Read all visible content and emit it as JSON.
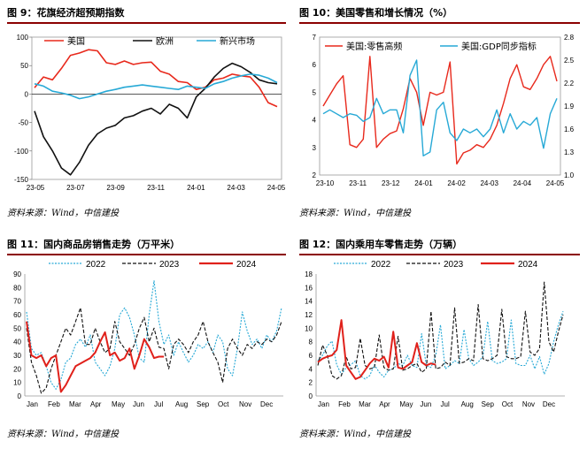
{
  "source_note": "资料来源：Wind，中信建投",
  "figures": [
    {
      "title": "图 9：花旗经济超预期指数"
    },
    {
      "title": "图 10：美国零售和增长情况（%）"
    },
    {
      "title": "图 11：国内商品房销售走势（万平米）"
    },
    {
      "title": "图 12：国内乘用车零售走势（万辆）"
    }
  ],
  "chart_data": [
    {
      "type": "line",
      "title": "",
      "x_ticks": [
        "23-05",
        "23-07",
        "23-09",
        "23-11",
        "24-01",
        "24-03",
        "24-05"
      ],
      "ylim": [
        -150,
        100
      ],
      "y_ticks": [
        -150,
        -100,
        -50,
        0,
        50,
        100
      ],
      "grid": false,
      "legend": "top",
      "n_points": 28,
      "series": [
        {
          "name": "美国",
          "color": "#e8291c",
          "values": [
            11,
            30,
            25,
            45,
            68,
            72,
            78,
            76,
            55,
            52,
            58,
            52,
            55,
            56,
            40,
            35,
            22,
            20,
            8,
            12,
            25,
            28,
            35,
            32,
            30,
            12,
            -15,
            -22
          ]
        },
        {
          "name": "欧洲",
          "color": "#111111",
          "values": [
            -30,
            -75,
            -100,
            -130,
            -142,
            -120,
            -90,
            -70,
            -60,
            -55,
            -42,
            -38,
            -30,
            -25,
            -35,
            -18,
            -25,
            -42,
            -5,
            10,
            30,
            45,
            54,
            48,
            38,
            25,
            20,
            18
          ]
        },
        {
          "name": "新兴市场",
          "color": "#27a9d6",
          "values": [
            18,
            14,
            5,
            2,
            -2,
            -8,
            -5,
            0,
            5,
            8,
            12,
            14,
            16,
            14,
            12,
            10,
            8,
            14,
            12,
            10,
            18,
            22,
            28,
            32,
            35,
            33,
            28,
            20
          ]
        }
      ]
    },
    {
      "type": "line",
      "title": "",
      "x_ticks": [
        "23-10",
        "23-11",
        "23-12",
        "24-01",
        "24-02",
        "24-03",
        "24-04",
        "24-05"
      ],
      "ylim_left": [
        2,
        7
      ],
      "y_ticks_left": [
        2,
        3,
        4,
        5,
        6,
        7
      ],
      "ylim_right": [
        1.0,
        2.8
      ],
      "y_ticks_right": [
        1.0,
        1.3,
        1.6,
        1.9,
        2.2,
        2.5,
        2.8
      ],
      "legend": "top",
      "n_points": 36,
      "series": [
        {
          "name": "美国:零售高频",
          "axis": "left",
          "color": "#e8291c",
          "values": [
            4.5,
            4.9,
            5.3,
            5.6,
            3.1,
            3.0,
            3.3,
            6.3,
            3.0,
            3.3,
            3.5,
            3.6,
            4.4,
            5.5,
            5.0,
            3.8,
            5.0,
            4.9,
            5.0,
            6.1,
            2.4,
            2.8,
            2.9,
            3.1,
            3.0,
            3.3,
            3.8,
            4.6,
            5.5,
            6.0,
            5.2,
            5.1,
            5.5,
            6.0,
            6.3,
            5.4
          ]
        },
        {
          "name": "美国:GDP同步指标",
          "axis": "right",
          "color": "#27a9d6",
          "values": [
            1.8,
            1.85,
            1.8,
            1.75,
            1.8,
            1.78,
            1.7,
            1.75,
            2.0,
            1.8,
            1.85,
            1.85,
            1.55,
            2.3,
            2.5,
            1.25,
            1.3,
            1.85,
            1.95,
            1.55,
            1.45,
            1.6,
            1.55,
            1.6,
            1.5,
            1.6,
            1.85,
            1.55,
            1.8,
            1.6,
            1.7,
            1.65,
            1.75,
            1.35,
            1.8,
            2.0
          ]
        }
      ]
    },
    {
      "type": "line",
      "title": "",
      "x_ticks": [
        "Jan",
        "Feb",
        "Mar",
        "Apr",
        "May",
        "Jun",
        "Jul",
        "Aug",
        "Sep",
        "Oct",
        "Nov",
        "Dec"
      ],
      "ylim": [
        0,
        90
      ],
      "y_ticks": [
        0,
        10,
        20,
        30,
        40,
        50,
        60,
        70,
        80,
        90
      ],
      "legend": "top",
      "series": [
        {
          "name": "2022",
          "color": "#27a9d6",
          "dash": "dotted",
          "values": [
            62,
            35,
            30,
            32,
            22,
            10,
            5,
            12,
            25,
            28,
            38,
            42,
            36,
            45,
            25,
            20,
            15,
            22,
            35,
            60,
            65,
            58,
            45,
            28,
            25,
            60,
            85,
            55,
            38,
            45,
            30,
            40,
            32,
            25,
            30,
            38,
            35,
            40,
            32,
            45,
            40,
            20,
            15,
            35,
            62,
            48,
            38,
            42,
            35,
            45,
            40,
            48,
            65
          ]
        },
        {
          "name": "2023",
          "color": "#111111",
          "dash": "dashed",
          "values": [
            50,
            25,
            15,
            2,
            6,
            20,
            30,
            40,
            50,
            45,
            55,
            65,
            38,
            38,
            50,
            40,
            32,
            35,
            55,
            40,
            35,
            30,
            38,
            50,
            58,
            40,
            50,
            36,
            35,
            20,
            38,
            42,
            38,
            32,
            40,
            45,
            55,
            40,
            32,
            25,
            10,
            35,
            42,
            35,
            30,
            38,
            35,
            40,
            38,
            42,
            40,
            45,
            55
          ]
        },
        {
          "name": "2024",
          "color": "#e0211b",
          "dash": "solid",
          "values": [
            55,
            30,
            28,
            30,
            22,
            28,
            30,
            3,
            8,
            15,
            22,
            24,
            26,
            28,
            32,
            40,
            47,
            30,
            32,
            26,
            28,
            35,
            20,
            30,
            42,
            36,
            28,
            29,
            29
          ]
        }
      ]
    },
    {
      "type": "line",
      "title": "",
      "x_ticks": [
        "Jan",
        "Feb",
        "Mar",
        "Apr",
        "May",
        "Jun",
        "Jul",
        "Aug",
        "Sep",
        "Oct",
        "Nov",
        "Dec"
      ],
      "ylim": [
        0,
        18
      ],
      "y_ticks": [
        0,
        2,
        4,
        6,
        8,
        10,
        12,
        14,
        16,
        18
      ],
      "legend": "top",
      "series": [
        {
          "name": "2022",
          "color": "#27a9d6",
          "dash": "dotted",
          "values": [
            5.2,
            6.0,
            7.4,
            8.1,
            4.6,
            3.2,
            4.2,
            4.6,
            5.2,
            3.0,
            2.5,
            3.0,
            4.6,
            3.5,
            2.8,
            3.8,
            4.0,
            4.8,
            4.5,
            6.0,
            4.5,
            4.2,
            9.2,
            4.5,
            4.2,
            6.0,
            10.5,
            4.0,
            4.5,
            5.2,
            4.8,
            9.8,
            5.5,
            4.5,
            5.0,
            5.8,
            11.0,
            5.2,
            4.8,
            5.0,
            5.5,
            11.2,
            4.8,
            4.5,
            4.5,
            6.0,
            4.0,
            5.8,
            3.2,
            4.8,
            8.0,
            10.5,
            12.5
          ]
        },
        {
          "name": "2023",
          "color": "#111111",
          "dash": "dashed",
          "values": [
            4.5,
            7.5,
            6.0,
            3.0,
            2.5,
            3.0,
            5.8,
            4.0,
            4.2,
            8.5,
            4.5,
            4.0,
            4.2,
            9.0,
            4.2,
            3.8,
            4.0,
            8.8,
            3.8,
            4.0,
            4.5,
            4.8,
            3.5,
            4.0,
            12.5,
            4.0,
            4.2,
            5.0,
            4.5,
            13.0,
            4.8,
            5.0,
            5.5,
            5.2,
            13.5,
            5.5,
            5.2,
            5.5,
            6.0,
            12.8,
            5.8,
            5.5,
            5.5,
            5.8,
            12.5,
            6.5,
            6.0,
            7.0,
            16.8,
            8.0,
            6.5,
            9.5,
            12.0
          ]
        },
        {
          "name": "2024",
          "color": "#e0211b",
          "dash": "solid",
          "values": [
            5.0,
            5.5,
            5.8,
            6.0,
            6.8,
            11.2,
            4.5,
            3.5,
            2.5,
            2.8,
            3.8,
            4.8,
            5.5,
            5.2,
            5.8,
            4.2,
            9.5,
            4.2,
            4.0,
            4.5,
            5.0,
            7.8,
            5.0,
            4.5,
            4.8,
            4.6
          ]
        }
      ]
    }
  ]
}
